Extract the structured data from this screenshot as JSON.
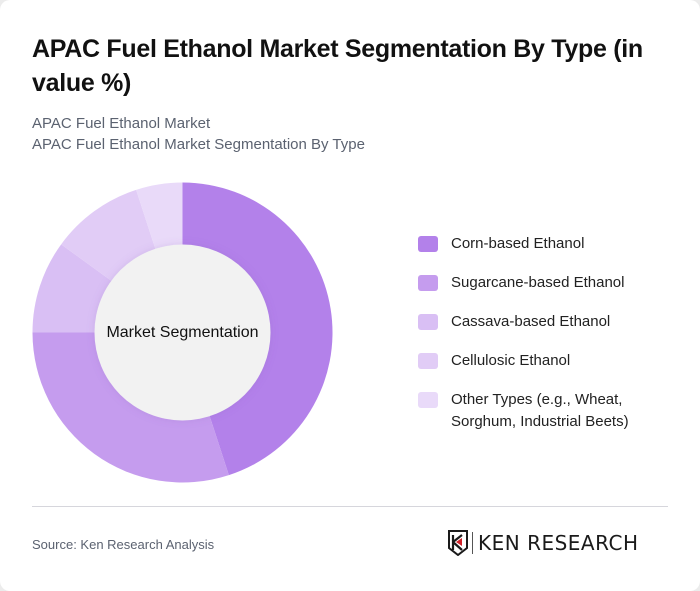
{
  "header": {
    "title": "APAC Fuel Ethanol Market Segmentation By Type (in value %)",
    "subtitle_line1": "APAC Fuel Ethanol Market",
    "subtitle_line2": "APAC Fuel Ethanol Market Segmentation By Type"
  },
  "chart_data": {
    "type": "pie",
    "variant": "donut",
    "title": "APAC Fuel Ethanol Market Segmentation By Type (in value %)",
    "center_label": "Market Segmentation",
    "categories": [
      "Corn-based Ethanol",
      "Sugarcane-based Ethanol",
      "Cassava-based Ethanol",
      "Cellulosic Ethanol",
      "Other Types (e.g., Wheat, Sorghum, Industrial Beets)"
    ],
    "values": [
      45,
      30,
      10,
      10,
      5
    ],
    "colors": [
      "#b381ea",
      "#c59cee",
      "#d9bff4",
      "#e1ccf6",
      "#e9daf9"
    ],
    "legend_position": "right",
    "start_angle_deg": 0,
    "direction": "clockwise"
  },
  "legend": {
    "items": [
      {
        "label": "Corn-based Ethanol",
        "color": "#b381ea"
      },
      {
        "label": "Sugarcane-based Ethanol",
        "color": "#c59cee"
      },
      {
        "label": "Cassava-based Ethanol",
        "color": "#d9bff4"
      },
      {
        "label": "Cellulosic Ethanol",
        "color": "#e1ccf6"
      },
      {
        "label": "Other Types (e.g., Wheat, Sorghum, Industrial Beets)",
        "color": "#e9daf9"
      }
    ]
  },
  "footer": {
    "source": "Source: Ken Research Analysis",
    "logo_text": "KEN RESEARCH",
    "logo_icon": "ken-research-k-shield-icon"
  }
}
